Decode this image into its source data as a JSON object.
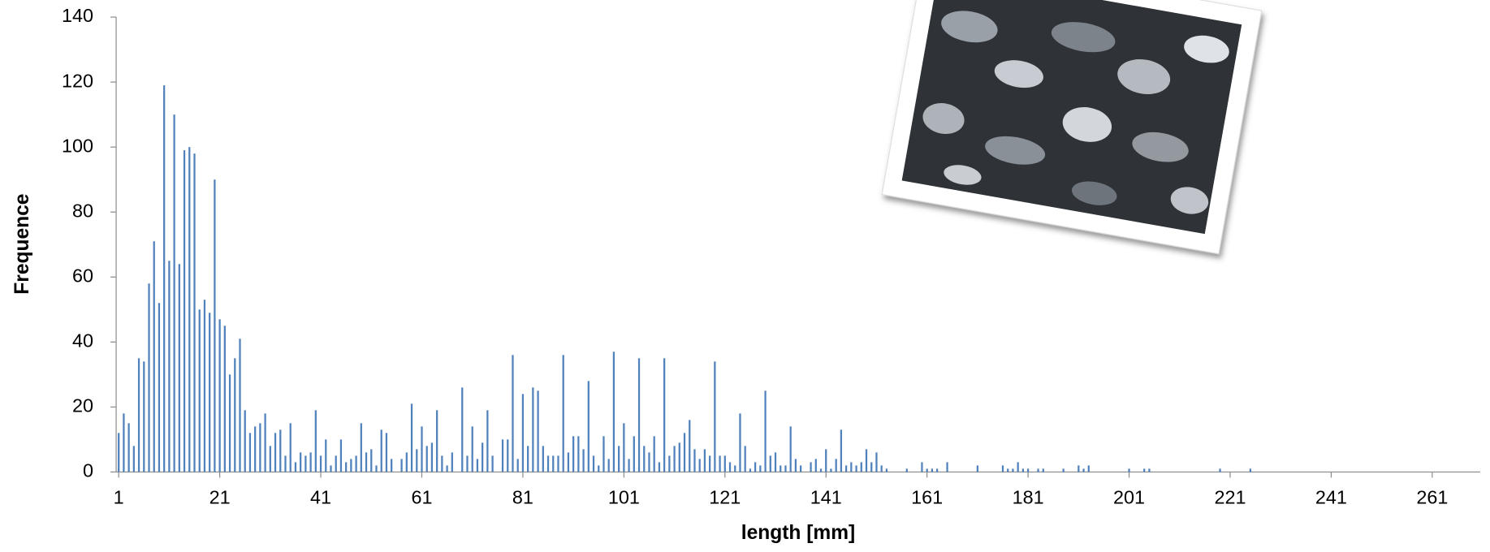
{
  "chart_data": {
    "type": "bar",
    "x_label": "length [mm]",
    "y_label": "Frequence",
    "color": "#4f81bd",
    "ylim": [
      0,
      140
    ],
    "yticks": [
      0,
      20,
      40,
      60,
      80,
      100,
      120,
      140
    ],
    "categories": [
      1,
      null,
      null,
      null,
      null,
      null,
      null,
      null,
      null,
      null,
      null,
      null,
      null,
      null,
      null,
      null,
      null,
      null,
      null,
      null,
      21,
      null,
      null,
      null,
      null,
      null,
      null,
      null,
      null,
      null,
      null,
      null,
      null,
      null,
      null,
      null,
      null,
      null,
      null,
      null,
      41,
      null,
      null,
      null,
      null,
      null,
      null,
      null,
      null,
      null,
      null,
      null,
      null,
      null,
      null,
      null,
      null,
      null,
      null,
      null,
      61,
      null,
      null,
      null,
      null,
      null,
      null,
      null,
      null,
      null,
      null,
      null,
      null,
      null,
      null,
      null,
      null,
      null,
      null,
      null,
      81,
      null,
      null,
      null,
      null,
      null,
      null,
      null,
      null,
      null,
      null,
      null,
      null,
      null,
      null,
      null,
      null,
      null,
      null,
      null,
      101,
      null,
      null,
      null,
      null,
      null,
      null,
      null,
      null,
      null,
      null,
      null,
      null,
      null,
      null,
      null,
      null,
      null,
      null,
      null,
      121,
      null,
      null,
      null,
      null,
      null,
      null,
      null,
      null,
      null,
      null,
      null,
      null,
      null,
      null,
      null,
      null,
      null,
      null,
      null,
      141,
      null,
      null,
      null,
      null,
      null,
      null,
      null,
      null,
      null,
      null,
      null,
      null,
      null,
      null,
      null,
      null,
      null,
      null,
      null,
      161,
      null,
      null,
      null,
      null,
      null,
      null,
      null,
      null,
      null,
      null,
      null,
      null,
      null,
      null,
      null,
      null,
      null,
      null,
      null,
      181,
      null,
      null,
      null,
      null,
      null,
      null,
      null,
      null,
      null,
      null,
      null,
      null,
      null,
      null,
      null,
      null,
      null,
      null,
      null,
      201,
      null,
      null,
      null,
      null,
      null,
      null,
      null,
      null,
      null,
      null,
      null,
      null,
      null,
      null,
      null,
      null,
      null,
      null,
      null,
      221,
      null,
      null,
      null,
      null,
      null,
      null,
      null,
      null,
      null,
      null,
      null,
      null,
      null,
      null,
      null,
      null,
      null,
      null,
      null,
      241,
      null,
      null,
      null,
      null,
      null,
      null,
      null,
      null,
      null,
      null,
      null,
      null,
      null,
      null,
      null,
      null,
      null,
      null,
      null,
      261,
      null,
      null,
      null,
      null,
      null,
      null,
      null,
      null,
      null
    ],
    "values": [
      12,
      18,
      15,
      8,
      35,
      34,
      58,
      71,
      52,
      119,
      65,
      110,
      64,
      99,
      100,
      98,
      50,
      53,
      49,
      90,
      47,
      45,
      30,
      35,
      41,
      19,
      12,
      14,
      15,
      18,
      8,
      12,
      13,
      5,
      15,
      3,
      6,
      5,
      6,
      19,
      5,
      10,
      2,
      5,
      10,
      3,
      4,
      5,
      15,
      6,
      7,
      2,
      13,
      12,
      4,
      0,
      4,
      6,
      21,
      7,
      14,
      8,
      9,
      19,
      5,
      2,
      6,
      0,
      26,
      5,
      14,
      4,
      9,
      19,
      5,
      0,
      10,
      10,
      36,
      4,
      24,
      8,
      26,
      25,
      8,
      5,
      5,
      5,
      36,
      6,
      11,
      11,
      7,
      28,
      5,
      2,
      11,
      4,
      37,
      8,
      15,
      4,
      11,
      35,
      8,
      6,
      11,
      3,
      35,
      5,
      8,
      9,
      12,
      16,
      7,
      4,
      7,
      5,
      34,
      5,
      5,
      3,
      2,
      18,
      8,
      1,
      3,
      2,
      25,
      5,
      6,
      2,
      2,
      14,
      4,
      2,
      0,
      3,
      4,
      1,
      7,
      1,
      4,
      13,
      2,
      3,
      2,
      3,
      7,
      3,
      6,
      2,
      1,
      0,
      0,
      0,
      1,
      0,
      0,
      3,
      1,
      1,
      1,
      0,
      3,
      0,
      0,
      0,
      0,
      0,
      2,
      0,
      0,
      0,
      0,
      2,
      1,
      1,
      3,
      1,
      1,
      0,
      1,
      1,
      0,
      0,
      0,
      1,
      0,
      0,
      2,
      1,
      2,
      0,
      0,
      0,
      0,
      0,
      0,
      0,
      1,
      0,
      0,
      1,
      1,
      0,
      0,
      0,
      0,
      0,
      0,
      0,
      0,
      0,
      0,
      0,
      0,
      0,
      1,
      0,
      0,
      0,
      0,
      0,
      1,
      0,
      0,
      0,
      0,
      0,
      0,
      0,
      0,
      0,
      0,
      0,
      0,
      0,
      0,
      0,
      0,
      0,
      0,
      0,
      0,
      0,
      0,
      0,
      0,
      0,
      0,
      0,
      0,
      0,
      0,
      0,
      0,
      0,
      0,
      0,
      0,
      0,
      0,
      0,
      0,
      0,
      0,
      0,
      0,
      0
    ]
  }
}
